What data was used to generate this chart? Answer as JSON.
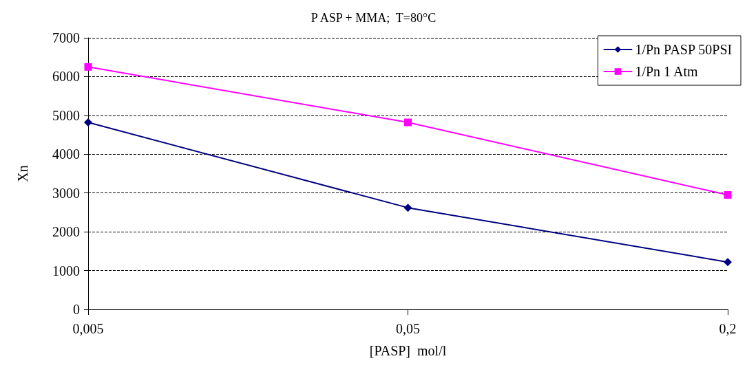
{
  "chart_data": {
    "type": "line",
    "title": "P ASP + MMA;  T=80°C",
    "xlabel": "[PASP]  mol/l",
    "ylabel": "Xn",
    "categories": [
      "0,005",
      "0,05",
      "0,2"
    ],
    "series": [
      {
        "name": "1/Pn PASP 50PSI",
        "color": "#000080",
        "marker": "diamond",
        "values": [
          4820,
          2620,
          1220
        ]
      },
      {
        "name": "1/Pn 1 Atm",
        "color": "#ff00ff",
        "marker": "square",
        "values": [
          6250,
          4820,
          2950
        ]
      }
    ],
    "ylim": [
      0,
      7000
    ],
    "yticks": [
      0,
      1000,
      2000,
      3000,
      4000,
      5000,
      6000,
      7000
    ],
    "grid": "y",
    "legend": "top right",
    "line_style": "solid"
  }
}
